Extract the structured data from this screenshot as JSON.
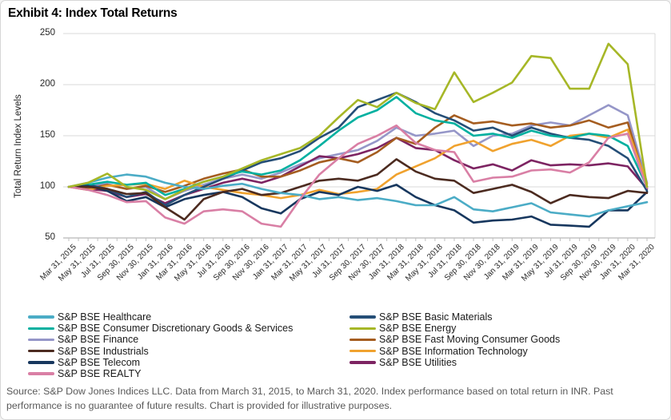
{
  "title": "Exhibit 4: Index Total Returns",
  "source": "Source: S&P Dow Jones Indices LLC. Data from March 31, 2015, to March 31, 2020. Index performance based on total return in INR. Past performance is no guarantee of future results. Chart is provided for illustrative purposes.",
  "legend": {
    "left": [
      "S&P BSE Healthcare",
      "S&P BSE Consumer Discretionary Goods & Services",
      "S&P BSE Finance",
      "S&P BSE Industrials",
      "S&P BSE Telecom",
      "S&P BSE REALTY"
    ],
    "right": [
      "S&P BSE Basic Materials",
      "S&P BSE Energy",
      "S&P BSE Fast Moving Consumer Goods",
      "S&P BSE Information Technology",
      "S&P BSE Utilities"
    ]
  },
  "chart_data": {
    "type": "line",
    "title": "Exhibit 4: Index Total Returns",
    "xlabel": "",
    "ylabel": "Total Return Index Levels",
    "ylim": [
      50,
      250
    ],
    "yticks": [
      50,
      100,
      150,
      200,
      250
    ],
    "grid": true,
    "legend_position": "bottom",
    "x_labels": [
      "Mar 31, 2015",
      "May 31, 2015",
      "Jul 31, 2015",
      "Sep 30, 2015",
      "Nov 30, 2015",
      "Jan 31, 2016",
      "Mar 31, 2016",
      "May 31, 2016",
      "Jul 31, 2016",
      "Sep 30, 2016",
      "Nov 30, 2016",
      "Jan 31, 2017",
      "Mar 31, 2017",
      "May 31, 2017",
      "Jul 31, 2017",
      "Sep 30, 2017",
      "Nov 30, 2017",
      "Jan 31, 2018",
      "Mar 31, 2018",
      "May 31, 2018",
      "Jul 31, 2018",
      "Sep 30, 2018",
      "Nov 30, 2018",
      "Jan 31, 2019",
      "Mar 31, 2019",
      "May 31, 2019",
      "Jul 31, 2019",
      "Sep 30, 2019",
      "Nov 30, 2019",
      "Jan 31, 2020",
      "Mar 31, 2020"
    ],
    "series": [
      {
        "name": "S&P BSE Finance",
        "color": "#9596C8",
        "values": [
          100,
          101,
          103,
          98,
          100,
          88,
          96,
          102,
          108,
          112,
          108,
          114,
          122,
          128,
          132,
          136,
          145,
          158,
          150,
          152,
          155,
          140,
          150,
          152,
          160,
          163,
          160,
          170,
          180,
          170,
          104
        ]
      },
      {
        "name": "S&P BSE Utilities",
        "color": "#7D2462",
        "values": [
          100,
          98,
          96,
          90,
          93,
          84,
          92,
          98,
          104,
          108,
          104,
          110,
          120,
          130,
          128,
          132,
          138,
          148,
          138,
          136,
          126,
          118,
          122,
          116,
          126,
          121,
          122,
          121,
          123,
          120,
          98
        ]
      },
      {
        "name": "S&P BSE Fast Moving Consumer Goods",
        "color": "#A55D20",
        "values": [
          100,
          98,
          102,
          98,
          101,
          95,
          101,
          108,
          113,
          117,
          110,
          110,
          116,
          124,
          128,
          124,
          134,
          148,
          142,
          158,
          170,
          162,
          164,
          160,
          162,
          158,
          160,
          165,
          158,
          163,
          100
        ]
      },
      {
        "name": "S&P BSE Information Technology",
        "color": "#F0A22E",
        "values": [
          100,
          97,
          101,
          102,
          103,
          98,
          106,
          100,
          97,
          94,
          92,
          89,
          92,
          97,
          93,
          95,
          98,
          112,
          120,
          128,
          140,
          145,
          135,
          142,
          146,
          140,
          150,
          152,
          148,
          156,
          103
        ]
      },
      {
        "name": "S&P BSE Basic Materials",
        "color": "#254E77",
        "values": [
          100,
          102,
          98,
          90,
          95,
          82,
          92,
          100,
          108,
          116,
          124,
          128,
          135,
          148,
          158,
          178,
          185,
          192,
          183,
          172,
          165,
          155,
          158,
          150,
          158,
          152,
          148,
          146,
          140,
          128,
          96
        ]
      },
      {
        "name": "S&P BSE Consumer Discretionary Goods & Services",
        "color": "#00B0A0",
        "values": [
          100,
          102,
          105,
          102,
          104,
          92,
          98,
          105,
          110,
          115,
          112,
          116,
          126,
          140,
          155,
          168,
          175,
          188,
          172,
          165,
          162,
          150,
          152,
          148,
          155,
          150,
          148,
          152,
          150,
          140,
          100
        ]
      },
      {
        "name": "S&P BSE Telecom",
        "color": "#17375E",
        "values": [
          100,
          101,
          96,
          86,
          90,
          80,
          88,
          92,
          95,
          90,
          79,
          74,
          88,
          95,
          92,
          100,
          96,
          102,
          90,
          82,
          77,
          65,
          67,
          68,
          71,
          63,
          62,
          61,
          77,
          77,
          95
        ]
      },
      {
        "name": "S&P BSE Industrials",
        "color": "#4C2B20",
        "values": [
          100,
          100,
          98,
          93,
          94,
          80,
          68,
          88,
          95,
          98,
          92,
          94,
          100,
          106,
          108,
          106,
          112,
          127,
          115,
          108,
          106,
          94,
          98,
          102,
          95,
          84,
          92,
          90,
          89,
          96,
          94
        ]
      },
      {
        "name": "S&P BSE Healthcare",
        "color": "#4BACC6",
        "values": [
          100,
          104,
          109,
          112,
          110,
          104,
          100,
          98,
          101,
          103,
          98,
          94,
          92,
          88,
          90,
          87,
          89,
          86,
          82,
          82,
          90,
          78,
          76,
          80,
          84,
          75,
          73,
          71,
          77,
          81,
          85
        ]
      },
      {
        "name": "S&P BSE REALTY",
        "color": "#D97FA5",
        "values": [
          100,
          97,
          92,
          85,
          86,
          70,
          64,
          76,
          78,
          76,
          64,
          61,
          88,
          112,
          128,
          142,
          150,
          160,
          143,
          136,
          134,
          105,
          109,
          110,
          116,
          117,
          114,
          124,
          148,
          152,
          99
        ]
      },
      {
        "name": "S&P BSE Energy",
        "color": "#A6B727",
        "values": [
          100,
          104,
          113,
          100,
          97,
          88,
          97,
          105,
          110,
          118,
          126,
          132,
          138,
          150,
          168,
          185,
          178,
          192,
          182,
          176,
          212,
          183,
          192,
          202,
          228,
          226,
          196,
          196,
          240,
          220,
          100
        ]
      }
    ]
  }
}
